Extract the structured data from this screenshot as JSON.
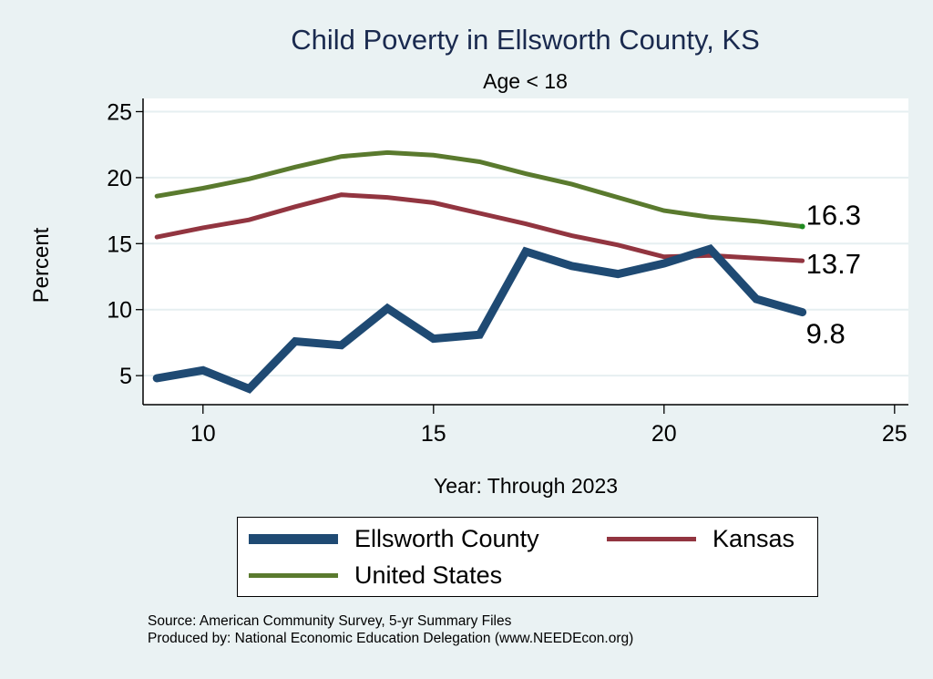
{
  "chart_data": {
    "type": "line",
    "title": "Child Poverty in Ellsworth County, KS",
    "subtitle": "Age < 18",
    "xlabel": "Year: Through 2023",
    "ylabel": "Percent",
    "x": [
      9,
      10,
      11,
      12,
      13,
      14,
      15,
      16,
      17,
      18,
      19,
      20,
      21,
      22,
      23
    ],
    "xlim": [
      8.7,
      25.3
    ],
    "ylim": [
      2.8,
      26
    ],
    "xticks": [
      10,
      15,
      20,
      25
    ],
    "yticks": [
      5,
      10,
      15,
      20,
      25
    ],
    "grid": "horizontal",
    "legend_position": "bottom",
    "series": [
      {
        "name": "Ellsworth County",
        "color": "#1f4a73",
        "values": [
          4.8,
          5.4,
          4.0,
          7.6,
          7.3,
          10.1,
          7.8,
          8.1,
          14.4,
          13.3,
          12.7,
          13.5,
          14.6,
          10.8,
          9.8
        ],
        "end_label": "9.8"
      },
      {
        "name": "Kansas",
        "color": "#923540",
        "values": [
          15.5,
          16.2,
          16.8,
          17.8,
          18.7,
          18.5,
          18.1,
          17.3,
          16.5,
          15.6,
          14.9,
          14.0,
          14.1,
          13.9,
          13.7
        ],
        "end_label": "13.7"
      },
      {
        "name": "United States",
        "color": "#5a7a2e",
        "values": [
          18.6,
          19.2,
          19.9,
          20.8,
          21.6,
          21.9,
          21.7,
          21.2,
          20.3,
          19.5,
          18.5,
          17.5,
          17.0,
          16.7,
          16.3
        ],
        "end_label": "16.3"
      }
    ]
  },
  "legend": {
    "items": [
      "Ellsworth County",
      "Kansas",
      "United States"
    ]
  },
  "source": {
    "line1": "Source: American Community Survey, 5-yr Summary Files",
    "line2": "Produced by: National Economic Education Delegation (www.NEEDEcon.org)"
  }
}
